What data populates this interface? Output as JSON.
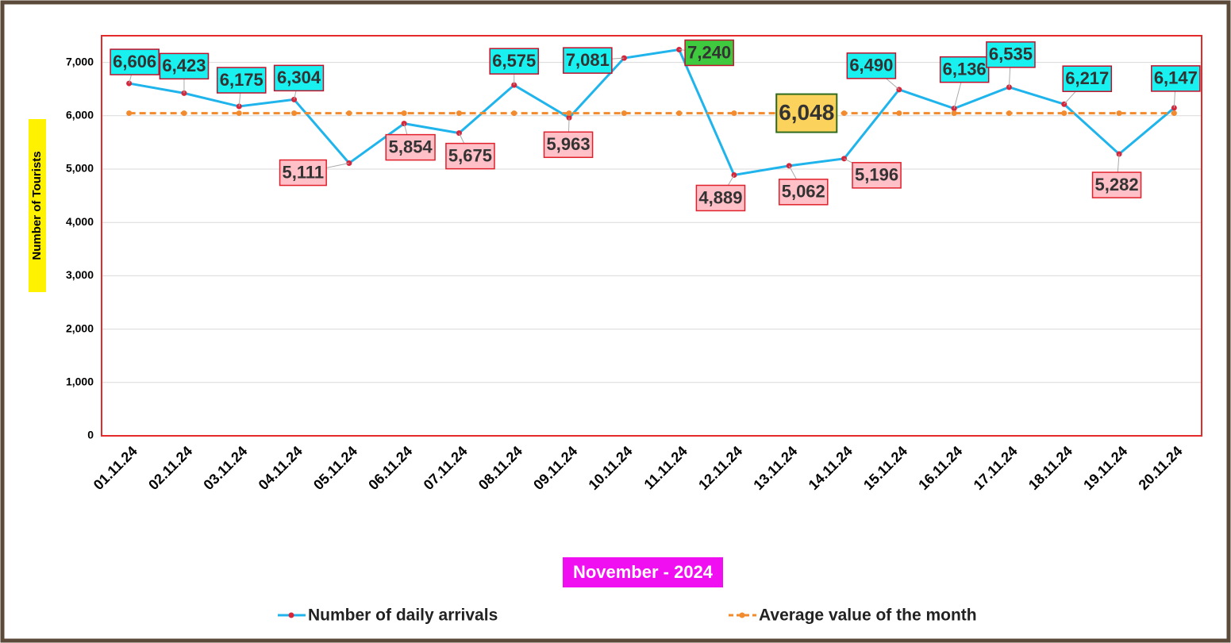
{
  "chart_data": {
    "type": "line",
    "y_axis_label": "Number of Tourists",
    "x_axis_label": "November  - 2024",
    "categories": [
      "01.11.24",
      "02.11.24",
      "03.11.24",
      "04.11.24",
      "05.11.24",
      "06.11.24",
      "07.11.24",
      "08.11.24",
      "09.11.24",
      "10.11.24",
      "11.11.24",
      "12.11.24",
      "13.11.24",
      "14.11.24",
      "15.11.24",
      "16.11.24",
      "17.11.24",
      "18.11.24",
      "19.11.24",
      "20.11.24"
    ],
    "series": [
      {
        "name": "Number of daily arrivals",
        "color": "#1fb4ec",
        "values": [
          6606,
          6423,
          6175,
          6304,
          5111,
          5854,
          5675,
          6575,
          5963,
          7081,
          7240,
          4889,
          5062,
          5196,
          6490,
          6136,
          6535,
          6217,
          5282,
          6147
        ],
        "value_labels": [
          "6,606",
          "6,423",
          "6,175",
          "6,304",
          "5,111",
          "5,854",
          "5,675",
          "6,575",
          "5,963",
          "7,081",
          "7,240",
          "4,889",
          "5,062",
          "5,196",
          "6,490",
          "6,136",
          "6,535",
          "6,217",
          "5,282",
          "6,147"
        ]
      },
      {
        "name": "Average value of the month",
        "color": "#f28a2e",
        "dashed": true,
        "values": [
          6048,
          6048,
          6048,
          6048,
          6048,
          6048,
          6048,
          6048,
          6048,
          6048,
          6048,
          6048,
          6048,
          6048,
          6048,
          6048,
          6048,
          6048,
          6048,
          6048
        ],
        "value_labels": [
          null,
          null,
          null,
          null,
          null,
          null,
          null,
          null,
          null,
          null,
          null,
          null,
          "6,048",
          null,
          null,
          null,
          null,
          null,
          null,
          null
        ]
      }
    ],
    "ylim": [
      0,
      7500
    ],
    "yticks": [
      0,
      {
        "value": 1000,
        "label": "1,000"
      },
      {
        "value": 2000,
        "label": "2,000"
      },
      {
        "value": 3000,
        "label": "3,000"
      },
      {
        "value": 4000,
        "label": "4,000"
      },
      {
        "value": 5000,
        "label": "5,000"
      },
      {
        "value": 6000,
        "label": "6,000"
      },
      {
        "value": 7000,
        "label": "7,000"
      }
    ],
    "grid": true,
    "legend": "bottom"
  }
}
